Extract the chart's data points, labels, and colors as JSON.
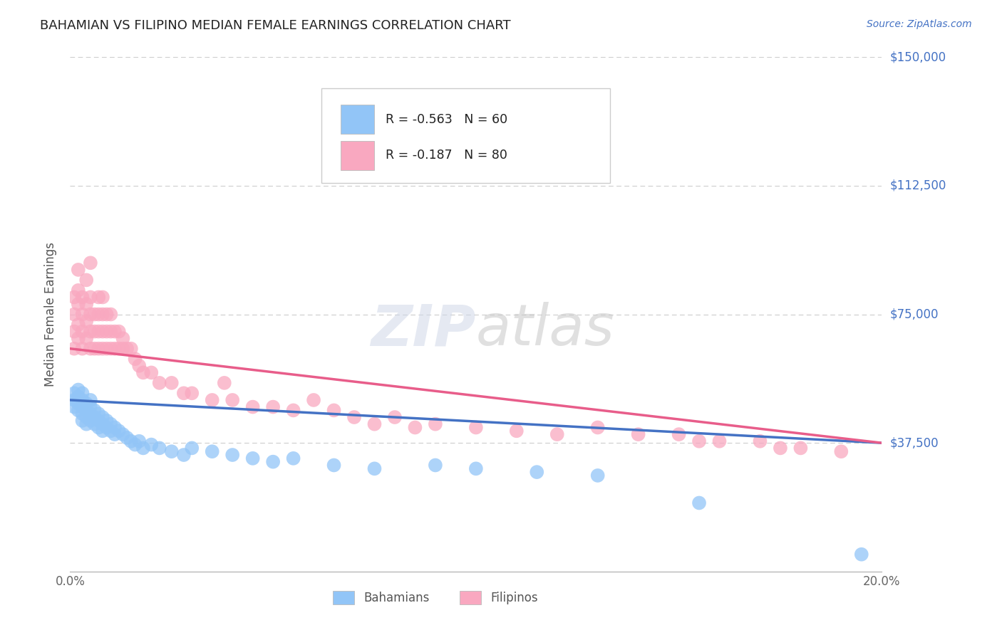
{
  "title": "BAHAMIAN VS FILIPINO MEDIAN FEMALE EARNINGS CORRELATION CHART",
  "source": "Source: ZipAtlas.com",
  "ylabel": "Median Female Earnings",
  "yticks": [
    0,
    37500,
    75000,
    112500,
    150000
  ],
  "ytick_labels": [
    "",
    "$37,500",
    "$75,000",
    "$112,500",
    "$150,000"
  ],
  "xmin": 0.0,
  "xmax": 0.2,
  "ymin": 0,
  "ymax": 150000,
  "bahamian_color": "#92c5f7",
  "filipino_color": "#f9a8c0",
  "bahamian_R": -0.563,
  "bahamian_N": 60,
  "filipino_R": -0.187,
  "filipino_N": 80,
  "legend_label_bahamian": "Bahamians",
  "legend_label_filipino": "Filipinos",
  "trend_blue": "#4472c4",
  "trend_pink": "#e85d8a",
  "title_color": "#222222",
  "axis_label_color": "#555555",
  "ytick_color": "#4472c4",
  "grid_color": "#cccccc",
  "background_color": "#ffffff",
  "bahamian_x": [
    0.001,
    0.001,
    0.001,
    0.002,
    0.002,
    0.002,
    0.002,
    0.003,
    0.003,
    0.003,
    0.003,
    0.003,
    0.004,
    0.004,
    0.004,
    0.004,
    0.005,
    0.005,
    0.005,
    0.005,
    0.006,
    0.006,
    0.006,
    0.007,
    0.007,
    0.007,
    0.008,
    0.008,
    0.008,
    0.009,
    0.009,
    0.01,
    0.01,
    0.011,
    0.011,
    0.012,
    0.013,
    0.014,
    0.015,
    0.016,
    0.017,
    0.018,
    0.02,
    0.022,
    0.025,
    0.028,
    0.03,
    0.035,
    0.04,
    0.045,
    0.05,
    0.055,
    0.065,
    0.075,
    0.09,
    0.1,
    0.115,
    0.13,
    0.155,
    0.195
  ],
  "bahamian_y": [
    50000,
    48000,
    52000,
    47000,
    51000,
    49000,
    53000,
    46000,
    50000,
    48000,
    44000,
    52000,
    47000,
    45000,
    49000,
    43000,
    46000,
    48000,
    44000,
    50000,
    45000,
    43000,
    47000,
    44000,
    46000,
    42000,
    45000,
    43000,
    41000,
    44000,
    42000,
    43000,
    41000,
    42000,
    40000,
    41000,
    40000,
    39000,
    38000,
    37000,
    38000,
    36000,
    37000,
    36000,
    35000,
    34000,
    36000,
    35000,
    34000,
    33000,
    32000,
    33000,
    31000,
    30000,
    31000,
    30000,
    29000,
    28000,
    20000,
    5000
  ],
  "filipino_x": [
    0.001,
    0.001,
    0.001,
    0.001,
    0.002,
    0.002,
    0.002,
    0.002,
    0.002,
    0.003,
    0.003,
    0.003,
    0.003,
    0.004,
    0.004,
    0.004,
    0.004,
    0.005,
    0.005,
    0.005,
    0.005,
    0.005,
    0.006,
    0.006,
    0.006,
    0.007,
    0.007,
    0.007,
    0.007,
    0.008,
    0.008,
    0.008,
    0.008,
    0.009,
    0.009,
    0.009,
    0.01,
    0.01,
    0.01,
    0.011,
    0.011,
    0.012,
    0.012,
    0.013,
    0.013,
    0.014,
    0.015,
    0.016,
    0.017,
    0.018,
    0.02,
    0.022,
    0.025,
    0.028,
    0.03,
    0.035,
    0.038,
    0.04,
    0.045,
    0.05,
    0.055,
    0.06,
    0.065,
    0.07,
    0.075,
    0.08,
    0.085,
    0.09,
    0.1,
    0.11,
    0.12,
    0.13,
    0.14,
    0.15,
    0.155,
    0.16,
    0.17,
    0.175,
    0.18,
    0.19
  ],
  "filipino_y": [
    65000,
    70000,
    75000,
    80000,
    68000,
    72000,
    78000,
    82000,
    88000,
    65000,
    70000,
    75000,
    80000,
    68000,
    73000,
    78000,
    85000,
    65000,
    70000,
    75000,
    80000,
    90000,
    65000,
    70000,
    75000,
    65000,
    70000,
    75000,
    80000,
    65000,
    70000,
    75000,
    80000,
    65000,
    70000,
    75000,
    65000,
    70000,
    75000,
    65000,
    70000,
    65000,
    70000,
    65000,
    68000,
    65000,
    65000,
    62000,
    60000,
    58000,
    58000,
    55000,
    55000,
    52000,
    52000,
    50000,
    55000,
    50000,
    48000,
    48000,
    47000,
    50000,
    47000,
    45000,
    43000,
    45000,
    42000,
    43000,
    42000,
    41000,
    40000,
    42000,
    40000,
    40000,
    38000,
    38000,
    38000,
    36000,
    36000,
    35000
  ]
}
